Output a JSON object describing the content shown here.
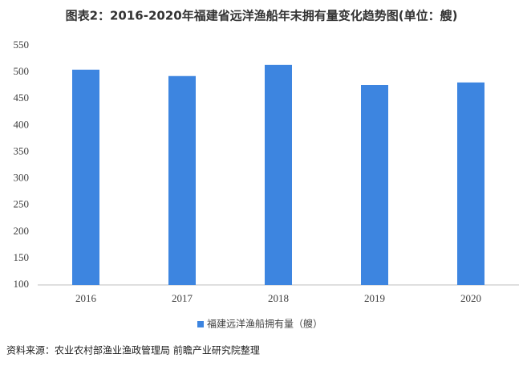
{
  "chart_data": {
    "type": "bar",
    "title": "图表2：2016-2020年福建省远洋渔船年末拥有量变化趋势图(单位：艘)",
    "categories": [
      "2016",
      "2017",
      "2018",
      "2019",
      "2020"
    ],
    "series": [
      {
        "name": "福建远洋渔船拥有量（艘）",
        "color": "#3d85e0",
        "values": [
          505,
          493,
          514,
          476,
          481
        ]
      }
    ],
    "ylim": [
      100,
      550
    ],
    "yticks": [
      100,
      150,
      200,
      250,
      300,
      350,
      400,
      450,
      500,
      550
    ],
    "grid": false,
    "legend": "bottom",
    "source": "资料来源：农业农村部渔业渔政管理局 前瞻产业研究院整理"
  }
}
